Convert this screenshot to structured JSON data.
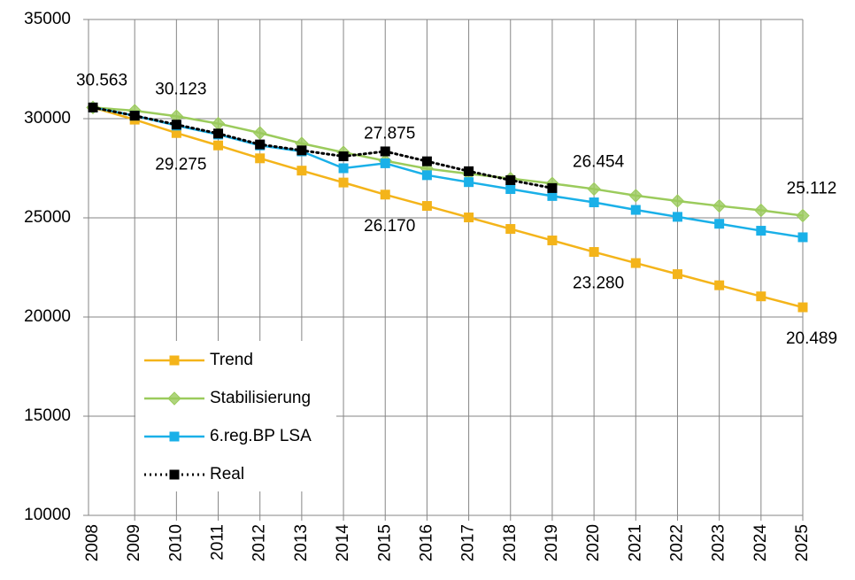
{
  "chart_data": {
    "type": "line",
    "categories": [
      "2008",
      "2009",
      "2010",
      "2011",
      "2012",
      "2013",
      "2014",
      "2015",
      "2016",
      "2017",
      "2018",
      "2019",
      "2020",
      "2021",
      "2022",
      "2023",
      "2024",
      "2025"
    ],
    "ylim": [
      10000,
      35000
    ],
    "yticks": [
      10000,
      15000,
      20000,
      25000,
      30000,
      35000
    ],
    "grid": true,
    "legend": "lower left",
    "series": [
      {
        "name": "Trend",
        "color": "#f4b41a",
        "marker": "square",
        "values": [
          30563,
          29950,
          29275,
          28650,
          28000,
          27380,
          26780,
          26170,
          25600,
          25020,
          24440,
          23860,
          23280,
          22720,
          22160,
          21600,
          21040,
          20489
        ],
        "value_labels": [
          "30.563",
          null,
          "29.275",
          null,
          null,
          null,
          null,
          "26.170",
          null,
          null,
          null,
          null,
          "23.280",
          null,
          null,
          null,
          null,
          "20.489"
        ]
      },
      {
        "name": "Stabilisierung",
        "color": "#9bcb5c",
        "marker": "diamond",
        "values": [
          30563,
          30400,
          30123,
          29750,
          29280,
          28750,
          28300,
          27875,
          27480,
          27220,
          26980,
          26730,
          26454,
          26120,
          25850,
          25600,
          25380,
          25112
        ],
        "value_labels": [
          null,
          null,
          "30.123",
          null,
          null,
          null,
          null,
          "27.875",
          null,
          null,
          null,
          null,
          "26.454",
          null,
          null,
          null,
          null,
          "25.112"
        ]
      },
      {
        "name": "6.reg.BP LSA",
        "color": "#1ab0e8",
        "marker": "square",
        "values": [
          30563,
          30150,
          29650,
          29200,
          28650,
          28350,
          27500,
          27750,
          27150,
          26800,
          26450,
          26100,
          25780,
          25400,
          25050,
          24700,
          24350,
          24020
        ]
      },
      {
        "name": "Real",
        "color": "#000000",
        "marker": "square",
        "dash": "dotted",
        "values": [
          30563,
          30150,
          29700,
          29250,
          28700,
          28400,
          28100,
          28350,
          27850,
          27350,
          26900,
          26500,
          null,
          null,
          null,
          null,
          null,
          null
        ]
      }
    ]
  }
}
